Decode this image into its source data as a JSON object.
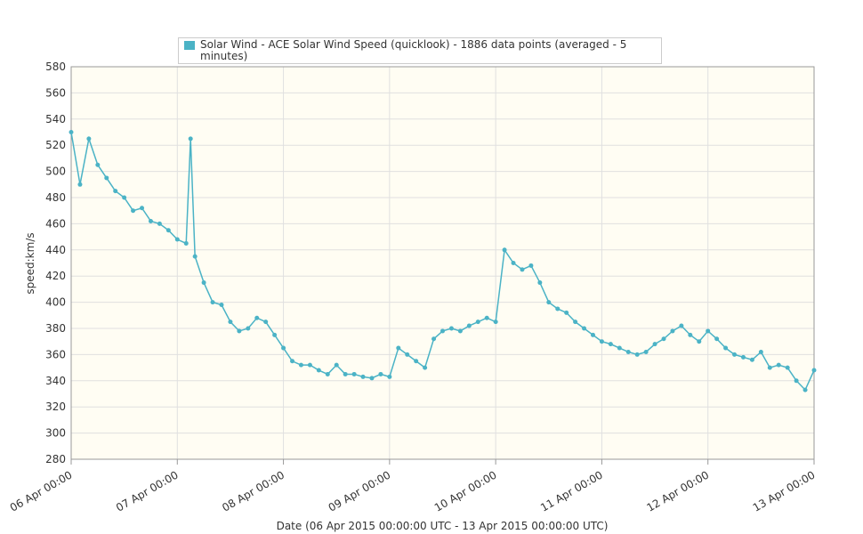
{
  "chart_data": {
    "type": "line",
    "legend": "Solar Wind - ACE Solar Wind Speed (quicklook) - 1886 data points (averaged - 5 minutes)",
    "xlabel": "Date (06 Apr 2015 00:00:00 UTC - 13 Apr 2015 00:00:00 UTC)",
    "ylabel": "speed:km/s",
    "grid": true,
    "xlim": [
      "2015-04-06T00:00",
      "2015-04-13T00:00"
    ],
    "xticks": [
      {
        "value": "2015-04-06T00:00",
        "label": "06 Apr 00:00"
      },
      {
        "value": "2015-04-07T00:00",
        "label": "07 Apr 00:00"
      },
      {
        "value": "2015-04-08T00:00",
        "label": "08 Apr 00:00"
      },
      {
        "value": "2015-04-09T00:00",
        "label": "09 Apr 00:00"
      },
      {
        "value": "2015-04-10T00:00",
        "label": "10 Apr 00:00"
      },
      {
        "value": "2015-04-11T00:00",
        "label": "11 Apr 00:00"
      },
      {
        "value": "2015-04-12T00:00",
        "label": "12 Apr 00:00"
      },
      {
        "value": "2015-04-13T00:00",
        "label": "13 Apr 00:00"
      }
    ],
    "ylim": [
      280,
      580
    ],
    "yticks": [
      280,
      300,
      320,
      340,
      360,
      380,
      400,
      420,
      440,
      460,
      480,
      500,
      520,
      540,
      560,
      580
    ],
    "x": [
      "2015-04-06T00:00",
      "2015-04-06T02:00",
      "2015-04-06T04:00",
      "2015-04-06T06:00",
      "2015-04-06T08:00",
      "2015-04-06T10:00",
      "2015-04-06T12:00",
      "2015-04-06T14:00",
      "2015-04-06T16:00",
      "2015-04-06T18:00",
      "2015-04-06T20:00",
      "2015-04-06T22:00",
      "2015-04-07T00:00",
      "2015-04-07T02:00",
      "2015-04-07T03:00",
      "2015-04-07T04:00",
      "2015-04-07T06:00",
      "2015-04-07T08:00",
      "2015-04-07T10:00",
      "2015-04-07T12:00",
      "2015-04-07T14:00",
      "2015-04-07T16:00",
      "2015-04-07T18:00",
      "2015-04-07T20:00",
      "2015-04-07T22:00",
      "2015-04-08T00:00",
      "2015-04-08T02:00",
      "2015-04-08T04:00",
      "2015-04-08T06:00",
      "2015-04-08T08:00",
      "2015-04-08T10:00",
      "2015-04-08T12:00",
      "2015-04-08T14:00",
      "2015-04-08T16:00",
      "2015-04-08T18:00",
      "2015-04-08T20:00",
      "2015-04-08T22:00",
      "2015-04-09T00:00",
      "2015-04-09T02:00",
      "2015-04-09T04:00",
      "2015-04-09T06:00",
      "2015-04-09T08:00",
      "2015-04-09T10:00",
      "2015-04-09T12:00",
      "2015-04-09T14:00",
      "2015-04-09T16:00",
      "2015-04-09T18:00",
      "2015-04-09T20:00",
      "2015-04-09T22:00",
      "2015-04-10T00:00",
      "2015-04-10T02:00",
      "2015-04-10T04:00",
      "2015-04-10T06:00",
      "2015-04-10T08:00",
      "2015-04-10T10:00",
      "2015-04-10T12:00",
      "2015-04-10T14:00",
      "2015-04-10T16:00",
      "2015-04-10T18:00",
      "2015-04-10T20:00",
      "2015-04-10T22:00",
      "2015-04-11T00:00",
      "2015-04-11T02:00",
      "2015-04-11T04:00",
      "2015-04-11T06:00",
      "2015-04-11T08:00",
      "2015-04-11T10:00",
      "2015-04-11T12:00",
      "2015-04-11T14:00",
      "2015-04-11T16:00",
      "2015-04-11T18:00",
      "2015-04-11T20:00",
      "2015-04-11T22:00",
      "2015-04-12T00:00",
      "2015-04-12T02:00",
      "2015-04-12T04:00",
      "2015-04-12T06:00",
      "2015-04-12T08:00",
      "2015-04-12T10:00",
      "2015-04-12T12:00",
      "2015-04-12T14:00",
      "2015-04-12T16:00",
      "2015-04-12T18:00",
      "2015-04-12T20:00",
      "2015-04-12T22:00",
      "2015-04-13T00:00"
    ],
    "series": [
      {
        "name": "Solar Wind - ACE Solar Wind Speed (quicklook) - 1886 data points (averaged - 5 minutes)",
        "color": "#4bb3c6",
        "values": [
          530,
          490,
          525,
          505,
          495,
          485,
          480,
          470,
          472,
          462,
          460,
          455,
          448,
          445,
          525,
          435,
          415,
          400,
          398,
          385,
          378,
          380,
          388,
          385,
          375,
          365,
          355,
          352,
          352,
          348,
          345,
          352,
          345,
          345,
          343,
          342,
          345,
          343,
          365,
          360,
          355,
          350,
          372,
          378,
          380,
          378,
          382,
          385,
          388,
          385,
          440,
          430,
          425,
          428,
          415,
          400,
          395,
          392,
          385,
          380,
          375,
          370,
          368,
          365,
          362,
          360,
          362,
          368,
          372,
          378,
          382,
          375,
          370,
          378,
          372,
          365,
          360,
          358,
          356,
          362,
          350,
          352,
          350,
          340,
          333,
          348
        ]
      }
    ]
  }
}
